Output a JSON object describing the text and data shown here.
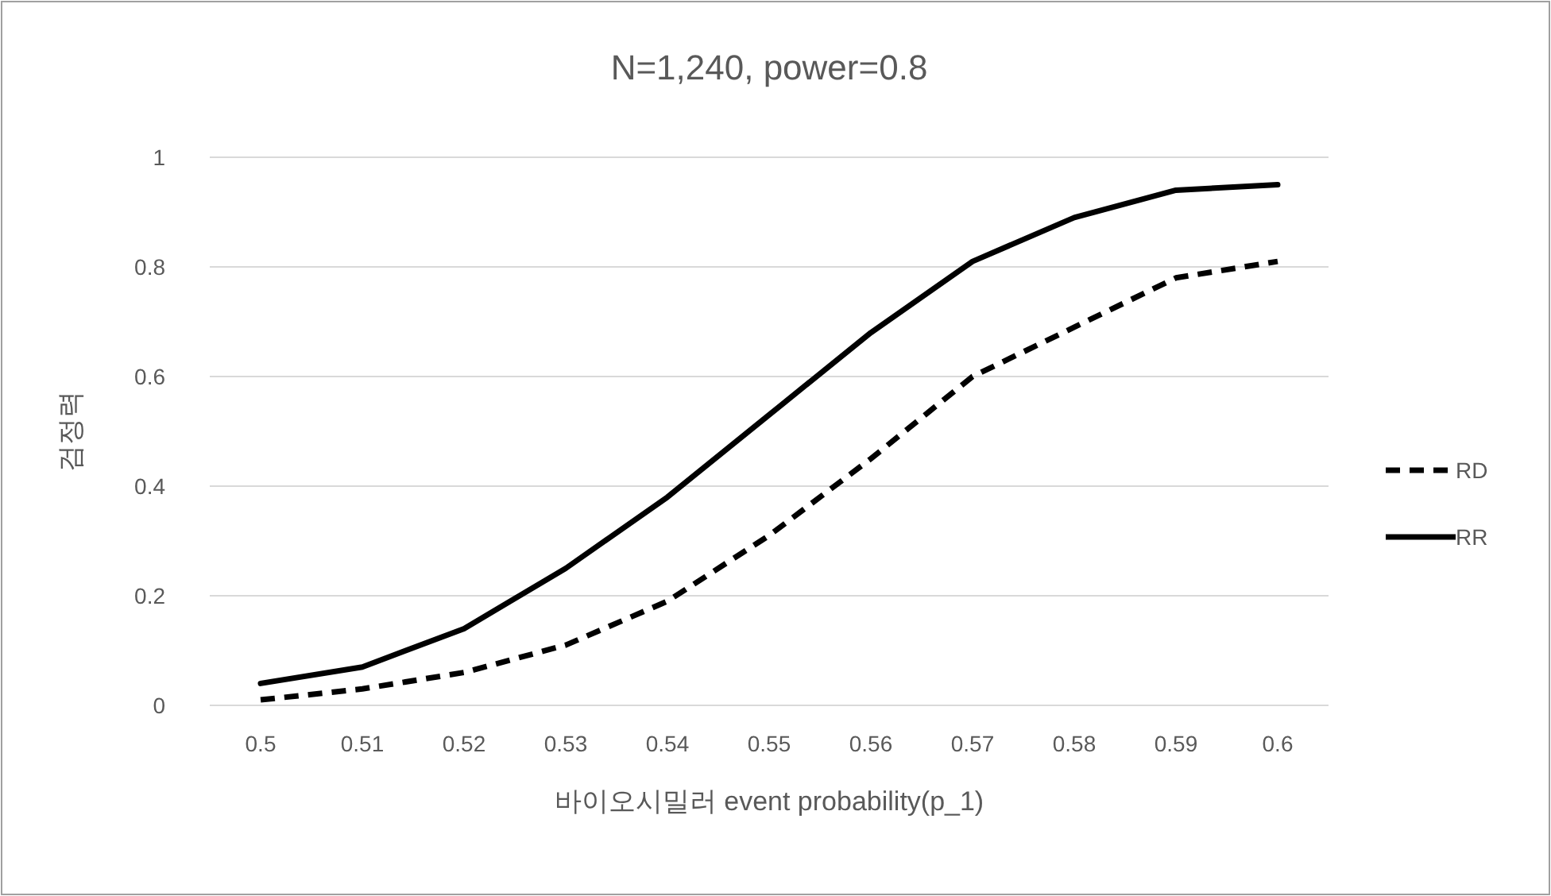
{
  "chart_data": {
    "type": "line",
    "title": "N=1,240, power=0.8",
    "xlabel": "바이오시밀러 event probability(p_1)",
    "ylabel": "검정력",
    "categories": [
      "0.5",
      "0.51",
      "0.52",
      "0.53",
      "0.54",
      "0.55",
      "0.56",
      "0.57",
      "0.58",
      "0.59",
      "0.6"
    ],
    "series": [
      {
        "name": "RD",
        "color": "#000000",
        "line_style": "dashed",
        "values": [
          0.01,
          0.03,
          0.06,
          0.11,
          0.19,
          0.31,
          0.45,
          0.6,
          0.69,
          0.78,
          0.81
        ]
      },
      {
        "name": "RR",
        "color": "#000000",
        "line_style": "solid",
        "values": [
          0.04,
          0.07,
          0.14,
          0.25,
          0.38,
          0.53,
          0.68,
          0.81,
          0.89,
          0.94,
          0.95
        ]
      }
    ],
    "ylim": [
      0,
      1
    ],
    "yticks": [
      0,
      0.2,
      0.4,
      0.6,
      0.8,
      1
    ],
    "grid": "y",
    "legend": "right"
  }
}
